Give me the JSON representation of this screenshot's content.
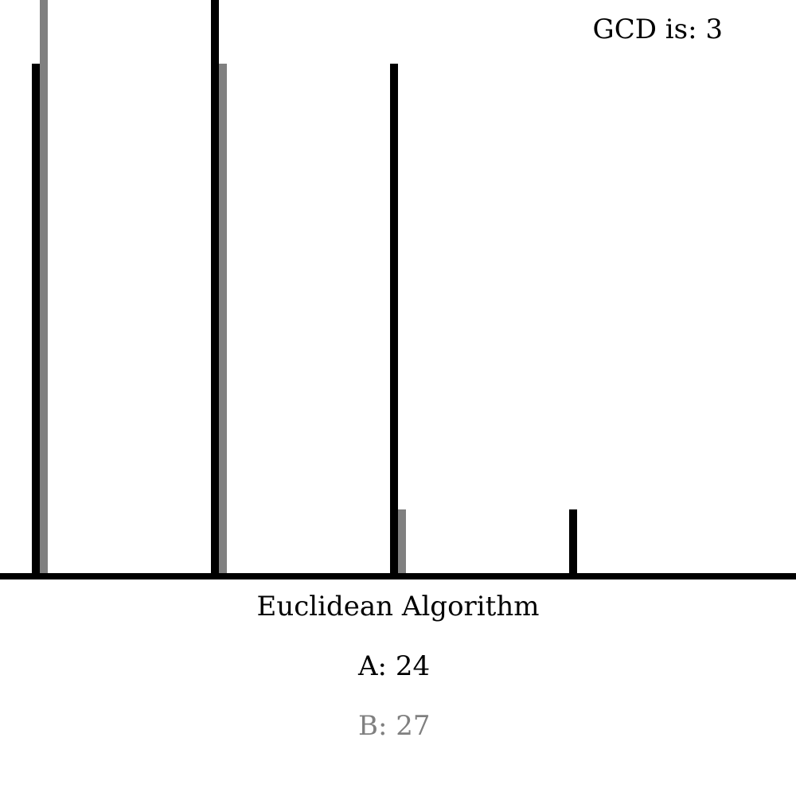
{
  "gcd": {
    "label": "GCD is: 3"
  },
  "title": "Euclidean Algorithm",
  "labels": {
    "a": "A: 24",
    "b": "B: 27"
  },
  "colors": {
    "a": "#000000",
    "b": "#808080",
    "baseline": "#000000",
    "background": "#ffffff"
  },
  "chart_data": {
    "type": "bar",
    "scale_max": 27,
    "steps": [
      {
        "a": 24,
        "b": 27
      },
      {
        "a": 27,
        "b": 24
      },
      {
        "a": 24,
        "b": 3
      },
      {
        "a": 3,
        "b": 0
      }
    ]
  }
}
